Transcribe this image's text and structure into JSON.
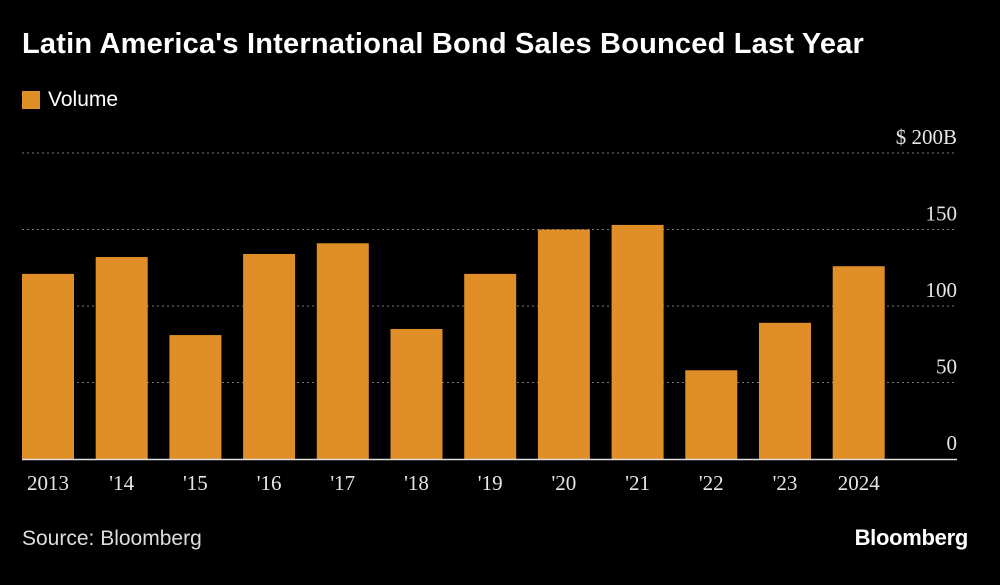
{
  "title": "Latin America's International Bond Sales Bounced Last Year",
  "legend": {
    "label": "Volume",
    "color": "#E08E28"
  },
  "source": "Source: Bloomberg",
  "brand": "Bloomberg",
  "chart_data": {
    "type": "bar",
    "title": "Latin America's International Bond Sales Bounced Last Year",
    "xlabel": "",
    "ylabel": "",
    "ylim": [
      0,
      200
    ],
    "y_ticks": [
      0,
      50,
      100,
      150,
      200
    ],
    "y_tick_labels": [
      "0",
      "50",
      "100",
      "150",
      "$ 200B"
    ],
    "categories": [
      "2013",
      "'14",
      "'15",
      "'16",
      "'17",
      "'18",
      "'19",
      "'20",
      "'21",
      "'22",
      "'23",
      "2024"
    ],
    "series": [
      {
        "name": "Volume",
        "values": [
          121,
          132,
          81,
          134,
          141,
          85,
          121,
          150,
          153,
          58,
          89,
          126
        ]
      }
    ],
    "grid": true,
    "legend_position": "top-left",
    "bar_color": "#E08E28"
  }
}
